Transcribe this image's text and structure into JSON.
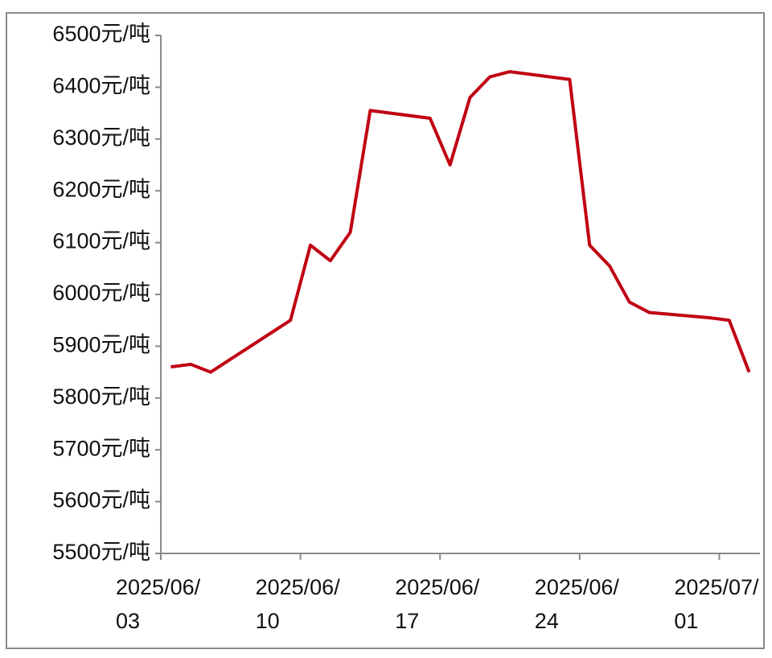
{
  "chart_data": {
    "type": "line",
    "x": [
      "2025/06/03",
      "2025/06/04",
      "2025/06/05",
      "2025/06/09",
      "2025/06/10",
      "2025/06/11",
      "2025/06/12",
      "2025/06/13",
      "2025/06/16",
      "2025/06/17",
      "2025/06/18",
      "2025/06/19",
      "2025/06/20",
      "2025/06/23",
      "2025/06/24",
      "2025/06/25",
      "2025/06/26",
      "2025/06/27",
      "2025/06/30",
      "2025/07/01",
      "2025/07/02"
    ],
    "values": [
      5860,
      5865,
      5850,
      5950,
      6095,
      6065,
      6120,
      6355,
      6340,
      6250,
      6380,
      6420,
      6430,
      6415,
      6095,
      6055,
      5985,
      5965,
      5955,
      5950,
      5850
    ],
    "color": "#c00012",
    "xlim": [
      "2025/06/03",
      "2025/07/03"
    ],
    "xticks": [
      "2025/06/03",
      "2025/06/10",
      "2025/06/17",
      "2025/06/24",
      "2025/07/01"
    ],
    "ylim": [
      5500,
      6500
    ],
    "yticks": [
      {
        "value": 5500,
        "label": "5500元/吨"
      },
      {
        "value": 5600,
        "label": "5600元/吨"
      },
      {
        "value": 5700,
        "label": "5700元/吨"
      },
      {
        "value": 5800,
        "label": "5800元/吨"
      },
      {
        "value": 5900,
        "label": "5900元/吨"
      },
      {
        "value": 6000,
        "label": "6000元/吨"
      },
      {
        "value": 6100,
        "label": "6100元/吨"
      },
      {
        "value": 6200,
        "label": "6200元/吨"
      },
      {
        "value": 6300,
        "label": "6300元/吨"
      },
      {
        "value": 6400,
        "label": "6400元/吨"
      },
      {
        "value": 6500,
        "label": "6500元/吨"
      }
    ],
    "grid": false
  }
}
